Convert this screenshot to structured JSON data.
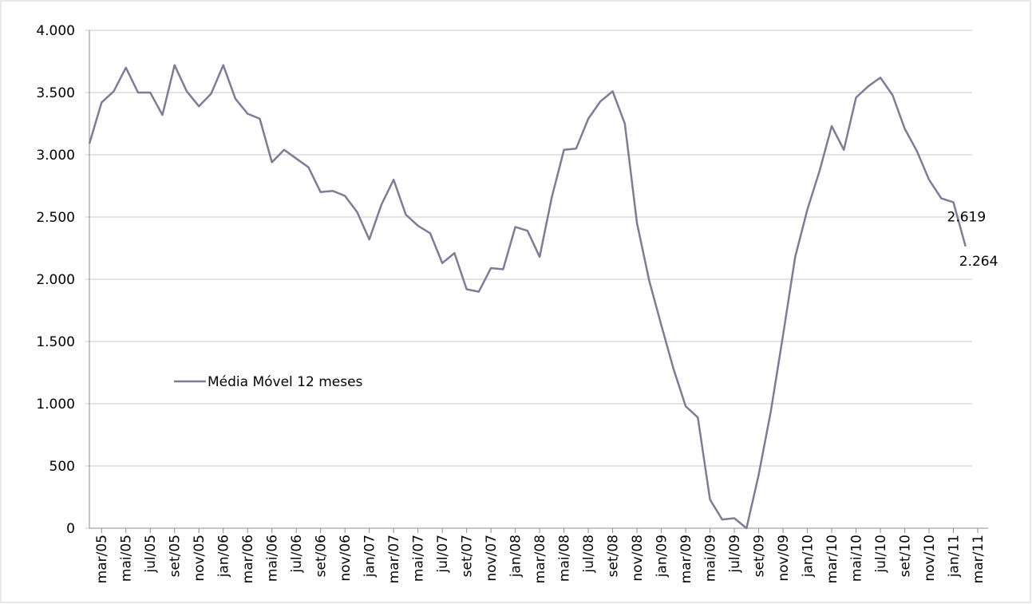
{
  "chart_data": {
    "type": "line",
    "categories": [
      null,
      "mar/05",
      null,
      "mai/05",
      null,
      "jul/05",
      null,
      "set/05",
      null,
      "nov/05",
      null,
      "jan/06",
      null,
      "mar/06",
      null,
      "mai/06",
      null,
      "jul/06",
      null,
      "set/06",
      null,
      "nov/06",
      null,
      "jan/07",
      null,
      "mar/07",
      null,
      "mai/07",
      null,
      "jul/07",
      null,
      "set/07",
      null,
      "nov/07",
      null,
      "jan/08",
      null,
      "mar/08",
      null,
      "mai/08",
      null,
      "jul/08",
      null,
      "set/08",
      null,
      "nov/08",
      null,
      "jan/09",
      null,
      "mar/09",
      null,
      "mai/09",
      null,
      "jul/09",
      null,
      "set/09",
      null,
      "nov/09",
      null,
      "jan/10",
      null,
      "mar/10",
      null,
      "mai/10",
      null,
      "jul/10",
      null,
      "set/10",
      null,
      "nov/10",
      null,
      "jan/11",
      null,
      "mar/11"
    ],
    "series": [
      {
        "name": "Média Móvel 12 meses",
        "color": "#7f7b96",
        "values": [
          3090,
          3420,
          3510,
          3700,
          3500,
          3500,
          3320,
          3720,
          3510,
          3390,
          3490,
          3720,
          3450,
          3330,
          3290,
          2940,
          3040,
          2970,
          2900,
          2700,
          2710,
          2670,
          2540,
          2320,
          2600,
          2800,
          2520,
          2430,
          2370,
          2130,
          2210,
          1920,
          1900,
          2090,
          2080,
          2420,
          2390,
          2180,
          2660,
          3040,
          3050,
          3290,
          3430,
          3510,
          3250,
          2450,
          1990,
          1630,
          1280,
          980,
          890,
          230,
          70,
          80,
          0,
          430,
          940,
          1550,
          2180,
          2560,
          2870,
          3230,
          3040,
          3460,
          3550,
          3620,
          3480,
          3210,
          3030,
          2800,
          2650,
          2619,
          2264,
          null
        ],
        "value_labels": [
          null,
          null,
          null,
          null,
          null,
          null,
          null,
          null,
          null,
          null,
          null,
          null,
          null,
          null,
          null,
          null,
          null,
          null,
          null,
          null,
          null,
          null,
          null,
          null,
          null,
          null,
          null,
          null,
          null,
          null,
          null,
          null,
          null,
          null,
          null,
          null,
          null,
          null,
          null,
          null,
          null,
          null,
          null,
          null,
          null,
          null,
          null,
          null,
          null,
          null,
          null,
          null,
          null,
          null,
          null,
          null,
          null,
          null,
          null,
          null,
          null,
          null,
          null,
          null,
          null,
          null,
          null,
          null,
          null,
          null,
          null,
          "2.619",
          "2.264",
          null
        ]
      }
    ],
    "ylim": [
      0,
      4000
    ],
    "yticks": [
      0,
      500,
      {
        "value": 1000,
        "label": "1.000"
      },
      {
        "value": 1500,
        "label": "1.500"
      },
      {
        "value": 2000,
        "label": "2.000"
      },
      {
        "value": 2500,
        "label": "2.500"
      },
      {
        "value": 3000,
        "label": "3.000"
      },
      {
        "value": 3500,
        "label": "3.500"
      },
      {
        "value": 4000,
        "label": "4.000"
      }
    ],
    "grid": true,
    "legend": "center-left"
  }
}
